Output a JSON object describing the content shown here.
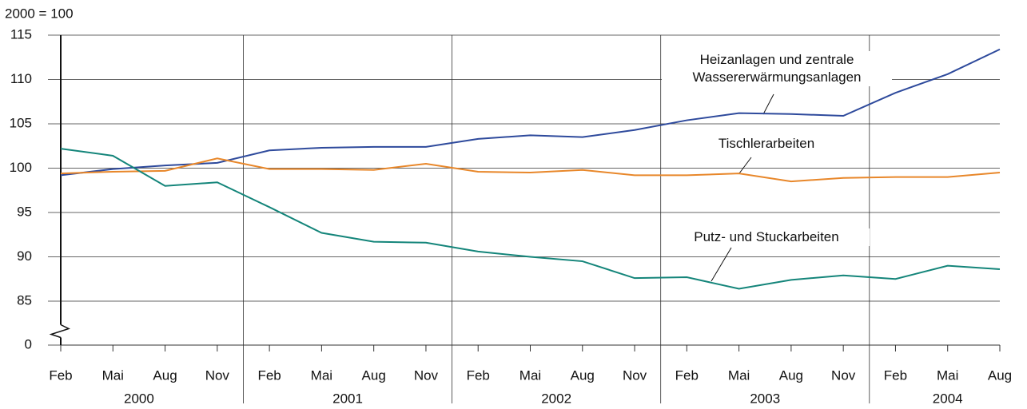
{
  "chart_data": {
    "type": "line",
    "y_unit_label": "2000 = 100",
    "categories": [
      "Feb",
      "Mai",
      "Aug",
      "Nov",
      "Feb",
      "Mai",
      "Aug",
      "Nov",
      "Feb",
      "Mai",
      "Aug",
      "Nov",
      "Feb",
      "Mai",
      "Aug",
      "Nov",
      "Feb",
      "Mai",
      "Aug"
    ],
    "years": [
      "2000",
      "2001",
      "2002",
      "2003",
      "2004"
    ],
    "series": [
      {
        "name": "Heizanlagen und zentrale Wassererwärmungsanlagen",
        "color": "#2e4a9c",
        "values": [
          99.2,
          99.9,
          100.3,
          100.6,
          102.0,
          102.3,
          102.4,
          102.4,
          103.3,
          103.7,
          103.5,
          104.3,
          105.4,
          106.2,
          106.1,
          105.9,
          108.5,
          110.6,
          113.4
        ]
      },
      {
        "name": "Tischlerarbeiten",
        "color": "#e8872a",
        "values": [
          99.4,
          99.6,
          99.7,
          101.1,
          99.9,
          99.9,
          99.8,
          100.5,
          99.6,
          99.5,
          99.8,
          99.2,
          99.2,
          99.4,
          98.5,
          98.9,
          99.0,
          99.0,
          99.5
        ]
      },
      {
        "name": "Putz- und Stuckarbeiten",
        "color": "#14857a",
        "values": [
          102.2,
          101.4,
          98.0,
          98.4,
          95.6,
          92.7,
          91.7,
          91.6,
          90.6,
          90.0,
          89.5,
          87.6,
          87.7,
          86.4,
          87.4,
          87.9,
          87.5,
          89.0,
          88.6
        ]
      }
    ],
    "ylim": [
      85,
      115
    ],
    "yticks": [
      0,
      85,
      90,
      95,
      100,
      105,
      110,
      115
    ],
    "axis_break": true,
    "grid": true
  }
}
